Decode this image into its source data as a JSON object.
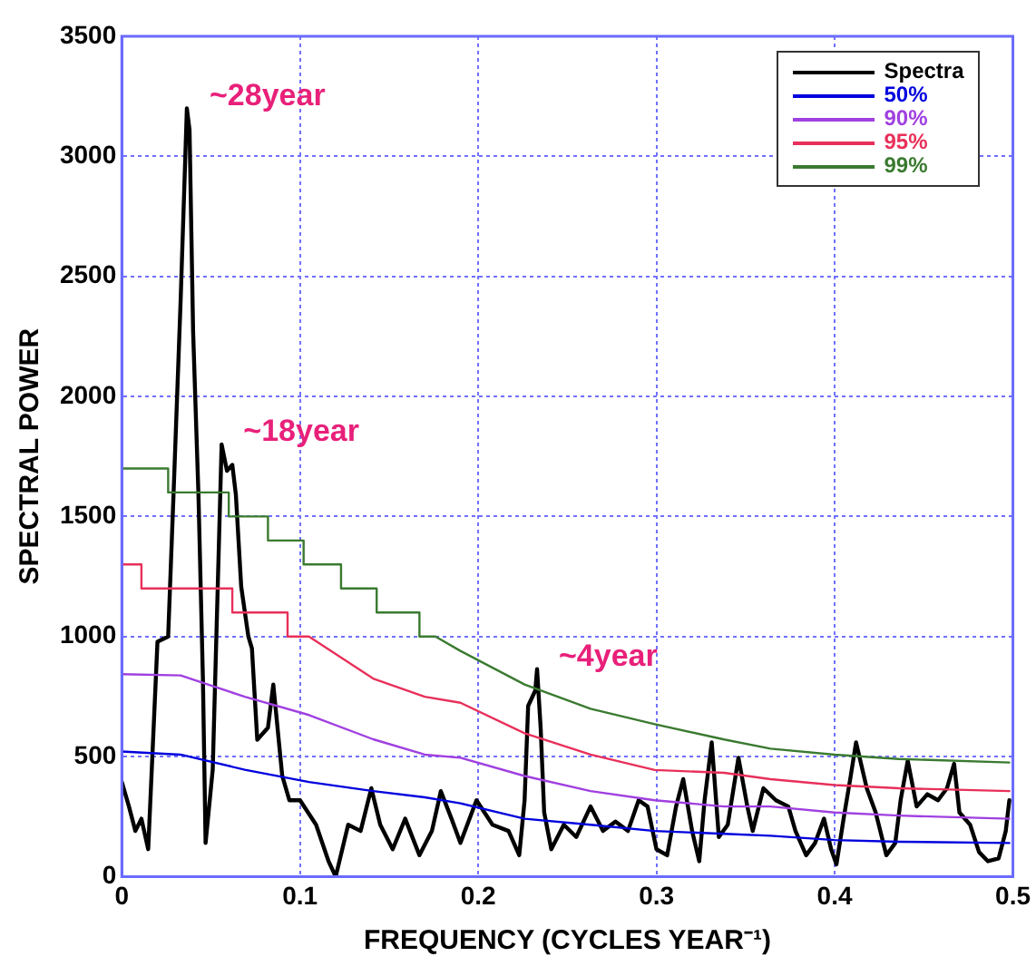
{
  "chart_data": {
    "type": "line",
    "xlabel": "FREQUENCY (CYCLES YEAR⁻¹)",
    "ylabel": "SPECTRAL POWER",
    "xlim": [
      0,
      0.5
    ],
    "xticks": [
      0,
      0.1,
      0.2,
      0.3,
      0.4,
      0.5
    ],
    "ylim": [
      0,
      3500
    ],
    "yticks": [
      0,
      500,
      1000,
      1500,
      2000,
      2500,
      3000,
      3500
    ],
    "grid": true,
    "legend": "top right",
    "marker": "none",
    "line_style": "solid",
    "annotations": [
      {
        "text": "~28year",
        "x": 0.037,
        "y": 3200
      },
      {
        "text": "~18year",
        "x": 0.056,
        "y": 1800
      },
      {
        "text": "~4year",
        "x": 0.233,
        "y": 864
      }
    ],
    "series": [
      {
        "name": "Spectra",
        "color": "#000000",
        "x": [
          0,
          0.004,
          0.0076,
          0.011,
          0.0148,
          0.02,
          0.026,
          0.029,
          0.033,
          0.0365,
          0.038,
          0.04,
          0.043,
          0.0455,
          0.047,
          0.051,
          0.054,
          0.056,
          0.059,
          0.062,
          0.064,
          0.067,
          0.071,
          0.073,
          0.076,
          0.082,
          0.085,
          0.09,
          0.094,
          0.1,
          0.109,
          0.116,
          0.12,
          0.127,
          0.134,
          0.14,
          0.145,
          0.152,
          0.159,
          0.167,
          0.174,
          0.179,
          0.185,
          0.19,
          0.199,
          0.208,
          0.217,
          0.223,
          0.226,
          0.228,
          0.232,
          0.233,
          0.235,
          0.237,
          0.241,
          0.248,
          0.255,
          0.263,
          0.27,
          0.277,
          0.284,
          0.29,
          0.295,
          0.3,
          0.306,
          0.311,
          0.315,
          0.32,
          0.324,
          0.327,
          0.331,
          0.335,
          0.34,
          0.346,
          0.351,
          0.354,
          0.36,
          0.367,
          0.374,
          0.378,
          0.384,
          0.389,
          0.394,
          0.398,
          0.401,
          0.405,
          0.409,
          0.412,
          0.418,
          0.423,
          0.429,
          0.434,
          0.437,
          0.441,
          0.446,
          0.452,
          0.458,
          0.463,
          0.467,
          0.47,
          0.476,
          0.481,
          0.486,
          0.492,
          0.496,
          0.498
        ],
        "values": [
          394,
          292,
          190,
          241,
          114,
          978,
          1000,
          1590,
          2400,
          3200,
          3110,
          2270,
          1590,
          825,
          140,
          445,
          1257,
          1800,
          1690,
          1715,
          1590,
          1207,
          1000,
          950,
          570,
          620,
          800,
          420,
          318,
          318,
          216,
          64,
          0,
          216,
          190,
          368,
          216,
          114,
          241,
          89,
          190,
          356,
          241,
          140,
          318,
          216,
          190,
          89,
          318,
          711,
          775,
          864,
          622,
          267,
          114,
          216,
          165,
          292,
          190,
          229,
          190,
          318,
          292,
          114,
          89,
          292,
          406,
          190,
          64,
          318,
          559,
          165,
          216,
          495,
          292,
          190,
          368,
          318,
          292,
          190,
          89,
          140,
          241,
          114,
          51,
          241,
          419,
          559,
          368,
          267,
          89,
          140,
          318,
          483,
          292,
          343,
          318,
          368,
          470,
          267,
          216,
          102,
          64,
          76,
          190,
          318
        ]
      },
      {
        "name": "50%",
        "color": "#0000dd",
        "x": [
          0,
          0.033,
          0.069,
          0.105,
          0.141,
          0.17,
          0.19,
          0.226,
          0.263,
          0.299,
          0.338,
          0.364,
          0.4,
          0.436,
          0.498
        ],
        "values": [
          521,
          508,
          445,
          394,
          356,
          330,
          305,
          241,
          216,
          190,
          178,
          170,
          152,
          145,
          140
        ]
      },
      {
        "name": "90%",
        "color": "#a040e0",
        "x": [
          0,
          0.033,
          0.069,
          0.105,
          0.141,
          0.17,
          0.19,
          0.226,
          0.263,
          0.299,
          0.338,
          0.364,
          0.4,
          0.436,
          0.498
        ],
        "values": [
          843,
          838,
          749,
          673,
          572,
          508,
          495,
          419,
          356,
          318,
          292,
          292,
          267,
          254,
          241
        ]
      },
      {
        "name": "95%",
        "color": "#e8305a",
        "x": [
          0,
          0.011,
          0.011,
          0.062,
          0.062,
          0.093,
          0.093,
          0.105,
          0.141,
          0.17,
          0.19,
          0.226,
          0.263,
          0.299,
          0.338,
          0.364,
          0.4,
          0.436,
          0.498
        ],
        "values": [
          1300,
          1300,
          1200,
          1200,
          1100,
          1100,
          1000,
          1000,
          825,
          749,
          724,
          597,
          508,
          444,
          432,
          406,
          381,
          368,
          356
        ]
      },
      {
        "name": "99%",
        "color": "#3a7a30",
        "x": [
          0,
          0.026,
          0.026,
          0.06,
          0.06,
          0.082,
          0.082,
          0.102,
          0.102,
          0.123,
          0.123,
          0.143,
          0.143,
          0.167,
          0.167,
          0.176,
          0.19,
          0.226,
          0.263,
          0.299,
          0.338,
          0.364,
          0.4,
          0.436,
          0.498
        ],
        "values": [
          1700,
          1700,
          1600,
          1600,
          1500,
          1500,
          1400,
          1400,
          1300,
          1300,
          1200,
          1200,
          1100,
          1100,
          1000,
          1000,
          940,
          800,
          699,
          635,
          571,
          533,
          508,
          490,
          475
        ]
      }
    ]
  }
}
